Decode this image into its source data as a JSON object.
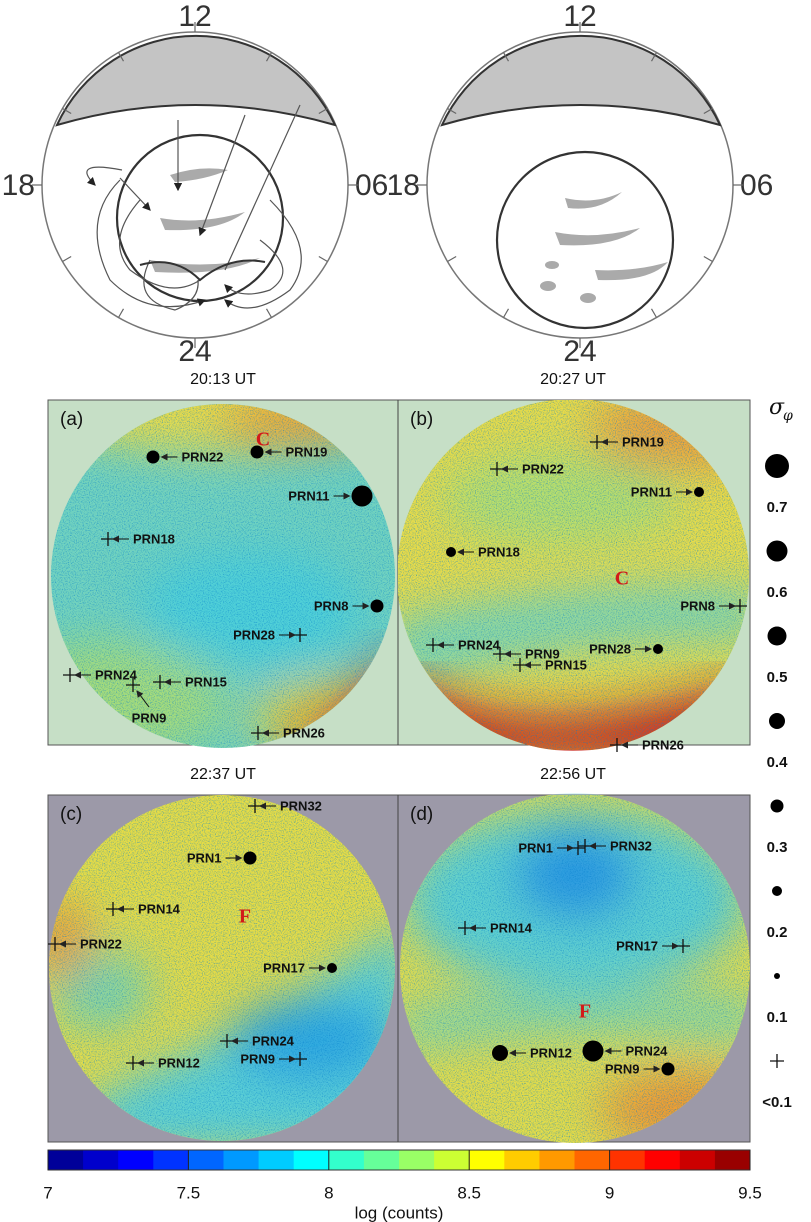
{
  "dials": [
    {
      "labels": {
        "top": "12",
        "left": "18",
        "right": "06",
        "bottom": "24"
      }
    },
    {
      "labels": {
        "top": "12",
        "left": "18",
        "right": "06",
        "bottom": "24"
      }
    }
  ],
  "panels": [
    {
      "title": "20:13 UT",
      "letter": "(a)",
      "region": "C",
      "satellites": [
        "PRN22",
        "PRN19",
        "PRN11",
        "PRN18",
        "PRN8",
        "PRN28",
        "PRN24",
        "PRN15",
        "PRN9",
        "PRN26"
      ]
    },
    {
      "title": "20:27 UT",
      "letter": "(b)",
      "region": "C",
      "satellites": [
        "PRN19",
        "PRN22",
        "PRN11",
        "PRN18",
        "PRN8",
        "PRN28",
        "PRN24",
        "PRN9",
        "PRN15",
        "PRN26"
      ]
    },
    {
      "title": "22:37 UT",
      "letter": "(c)",
      "region": "F",
      "satellites": [
        "PRN32",
        "PRN1",
        "PRN14",
        "PRN22",
        "PRN17",
        "PRN24",
        "PRN9",
        "PRN12"
      ]
    },
    {
      "title": "22:56 UT",
      "letter": "(d)",
      "region": "F",
      "satellites": [
        "PRN1",
        "PRN32",
        "PRN14",
        "PRN17",
        "PRN12",
        "PRN24",
        "PRN9"
      ]
    }
  ],
  "legend": {
    "title": "σ",
    "title_sub": "φ",
    "levels": [
      "0.7",
      "0.6",
      "0.5",
      "0.4",
      "0.3",
      "0.2",
      "0.1",
      "<0.1"
    ]
  },
  "colorbar": {
    "range": [
      7,
      9.5
    ],
    "ticks": [
      7,
      7.5,
      8,
      8.5,
      9,
      9.5
    ],
    "label": "log (counts)"
  }
}
